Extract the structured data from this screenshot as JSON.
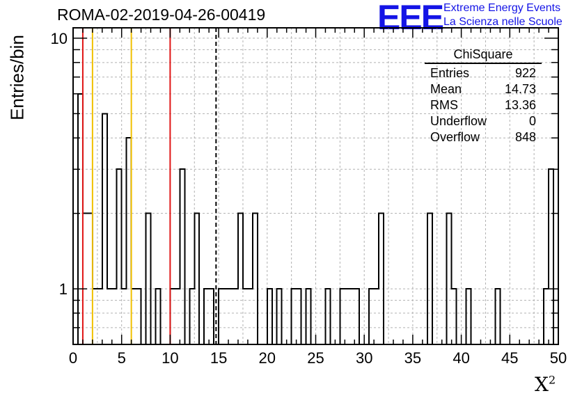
{
  "title": "ROMA-02-2019-04-26-00419",
  "logo": {
    "mark": "EEE",
    "line1": "Extreme Energy Events",
    "line2": "La Scienza nelle Scuole"
  },
  "stats": {
    "name": "ChiSquare",
    "rows": [
      {
        "label": "Entries",
        "value": "922"
      },
      {
        "label": "Mean",
        "value": "14.73"
      },
      {
        "label": "RMS",
        "value": "13.36"
      },
      {
        "label": "Underflow",
        "value": "0"
      },
      {
        "label": "Overflow",
        "value": "848"
      }
    ]
  },
  "chart_data": {
    "type": "histogram",
    "ylabel": "Entries/bin",
    "xlabel": "X",
    "xlabel_superscript": "2",
    "xlim": [
      0,
      50
    ],
    "ylim": [
      0.6,
      11
    ],
    "yscale": "log",
    "grid": true,
    "bin_width": 0.5,
    "x_ticks": [
      "0",
      "5",
      "10",
      "15",
      "20",
      "25",
      "30",
      "35",
      "40",
      "45",
      "50"
    ],
    "y_ticks": [
      "1",
      "10"
    ],
    "bins": [
      {
        "x": 0.5,
        "y": 6
      },
      {
        "x": 1.0,
        "y": 2
      },
      {
        "x": 1.5,
        "y": 2
      },
      {
        "x": 2.0,
        "y": 1
      },
      {
        "x": 2.5,
        "y": 1
      },
      {
        "x": 3.0,
        "y": 5
      },
      {
        "x": 3.5,
        "y": 1
      },
      {
        "x": 4.0,
        "y": 1
      },
      {
        "x": 4.5,
        "y": 3
      },
      {
        "x": 5.0,
        "y": 1
      },
      {
        "x": 5.5,
        "y": 4
      },
      {
        "x": 6.0,
        "y": 1
      },
      {
        "x": 6.5,
        "y": 1
      },
      {
        "x": 7.5,
        "y": 2
      },
      {
        "x": 8.5,
        "y": 1
      },
      {
        "x": 10.0,
        "y": 1
      },
      {
        "x": 10.5,
        "y": 1
      },
      {
        "x": 11.0,
        "y": 3
      },
      {
        "x": 12.0,
        "y": 1
      },
      {
        "x": 12.5,
        "y": 2
      },
      {
        "x": 13.5,
        "y": 1
      },
      {
        "x": 14.0,
        "y": 1
      },
      {
        "x": 15.0,
        "y": 1
      },
      {
        "x": 15.5,
        "y": 1
      },
      {
        "x": 16.0,
        "y": 1
      },
      {
        "x": 16.5,
        "y": 1
      },
      {
        "x": 17.0,
        "y": 2
      },
      {
        "x": 17.5,
        "y": 1
      },
      {
        "x": 18.0,
        "y": 1
      },
      {
        "x": 18.5,
        "y": 2
      },
      {
        "x": 20.0,
        "y": 1
      },
      {
        "x": 21.0,
        "y": 1
      },
      {
        "x": 22.5,
        "y": 1
      },
      {
        "x": 23.0,
        "y": 1
      },
      {
        "x": 24.0,
        "y": 1
      },
      {
        "x": 26.0,
        "y": 1
      },
      {
        "x": 27.5,
        "y": 1
      },
      {
        "x": 28.0,
        "y": 1
      },
      {
        "x": 28.5,
        "y": 1
      },
      {
        "x": 29.0,
        "y": 1
      },
      {
        "x": 30.5,
        "y": 1
      },
      {
        "x": 31.0,
        "y": 1
      },
      {
        "x": 31.5,
        "y": 2
      },
      {
        "x": 36.5,
        "y": 2
      },
      {
        "x": 38.5,
        "y": 2
      },
      {
        "x": 39.0,
        "y": 1
      },
      {
        "x": 40.5,
        "y": 1
      },
      {
        "x": 43.5,
        "y": 1
      },
      {
        "x": 48.5,
        "y": 1
      },
      {
        "x": 49.0,
        "y": 3
      }
    ],
    "reference_lines": [
      {
        "x": 1,
        "color": "#e01414",
        "style": "solid"
      },
      {
        "x": 2,
        "color": "#f0c000",
        "style": "solid"
      },
      {
        "x": 6,
        "color": "#f0c000",
        "style": "solid"
      },
      {
        "x": 10,
        "color": "#e01414",
        "style": "solid"
      },
      {
        "x": 14.73,
        "color": "#000000",
        "style": "dashed"
      }
    ]
  }
}
